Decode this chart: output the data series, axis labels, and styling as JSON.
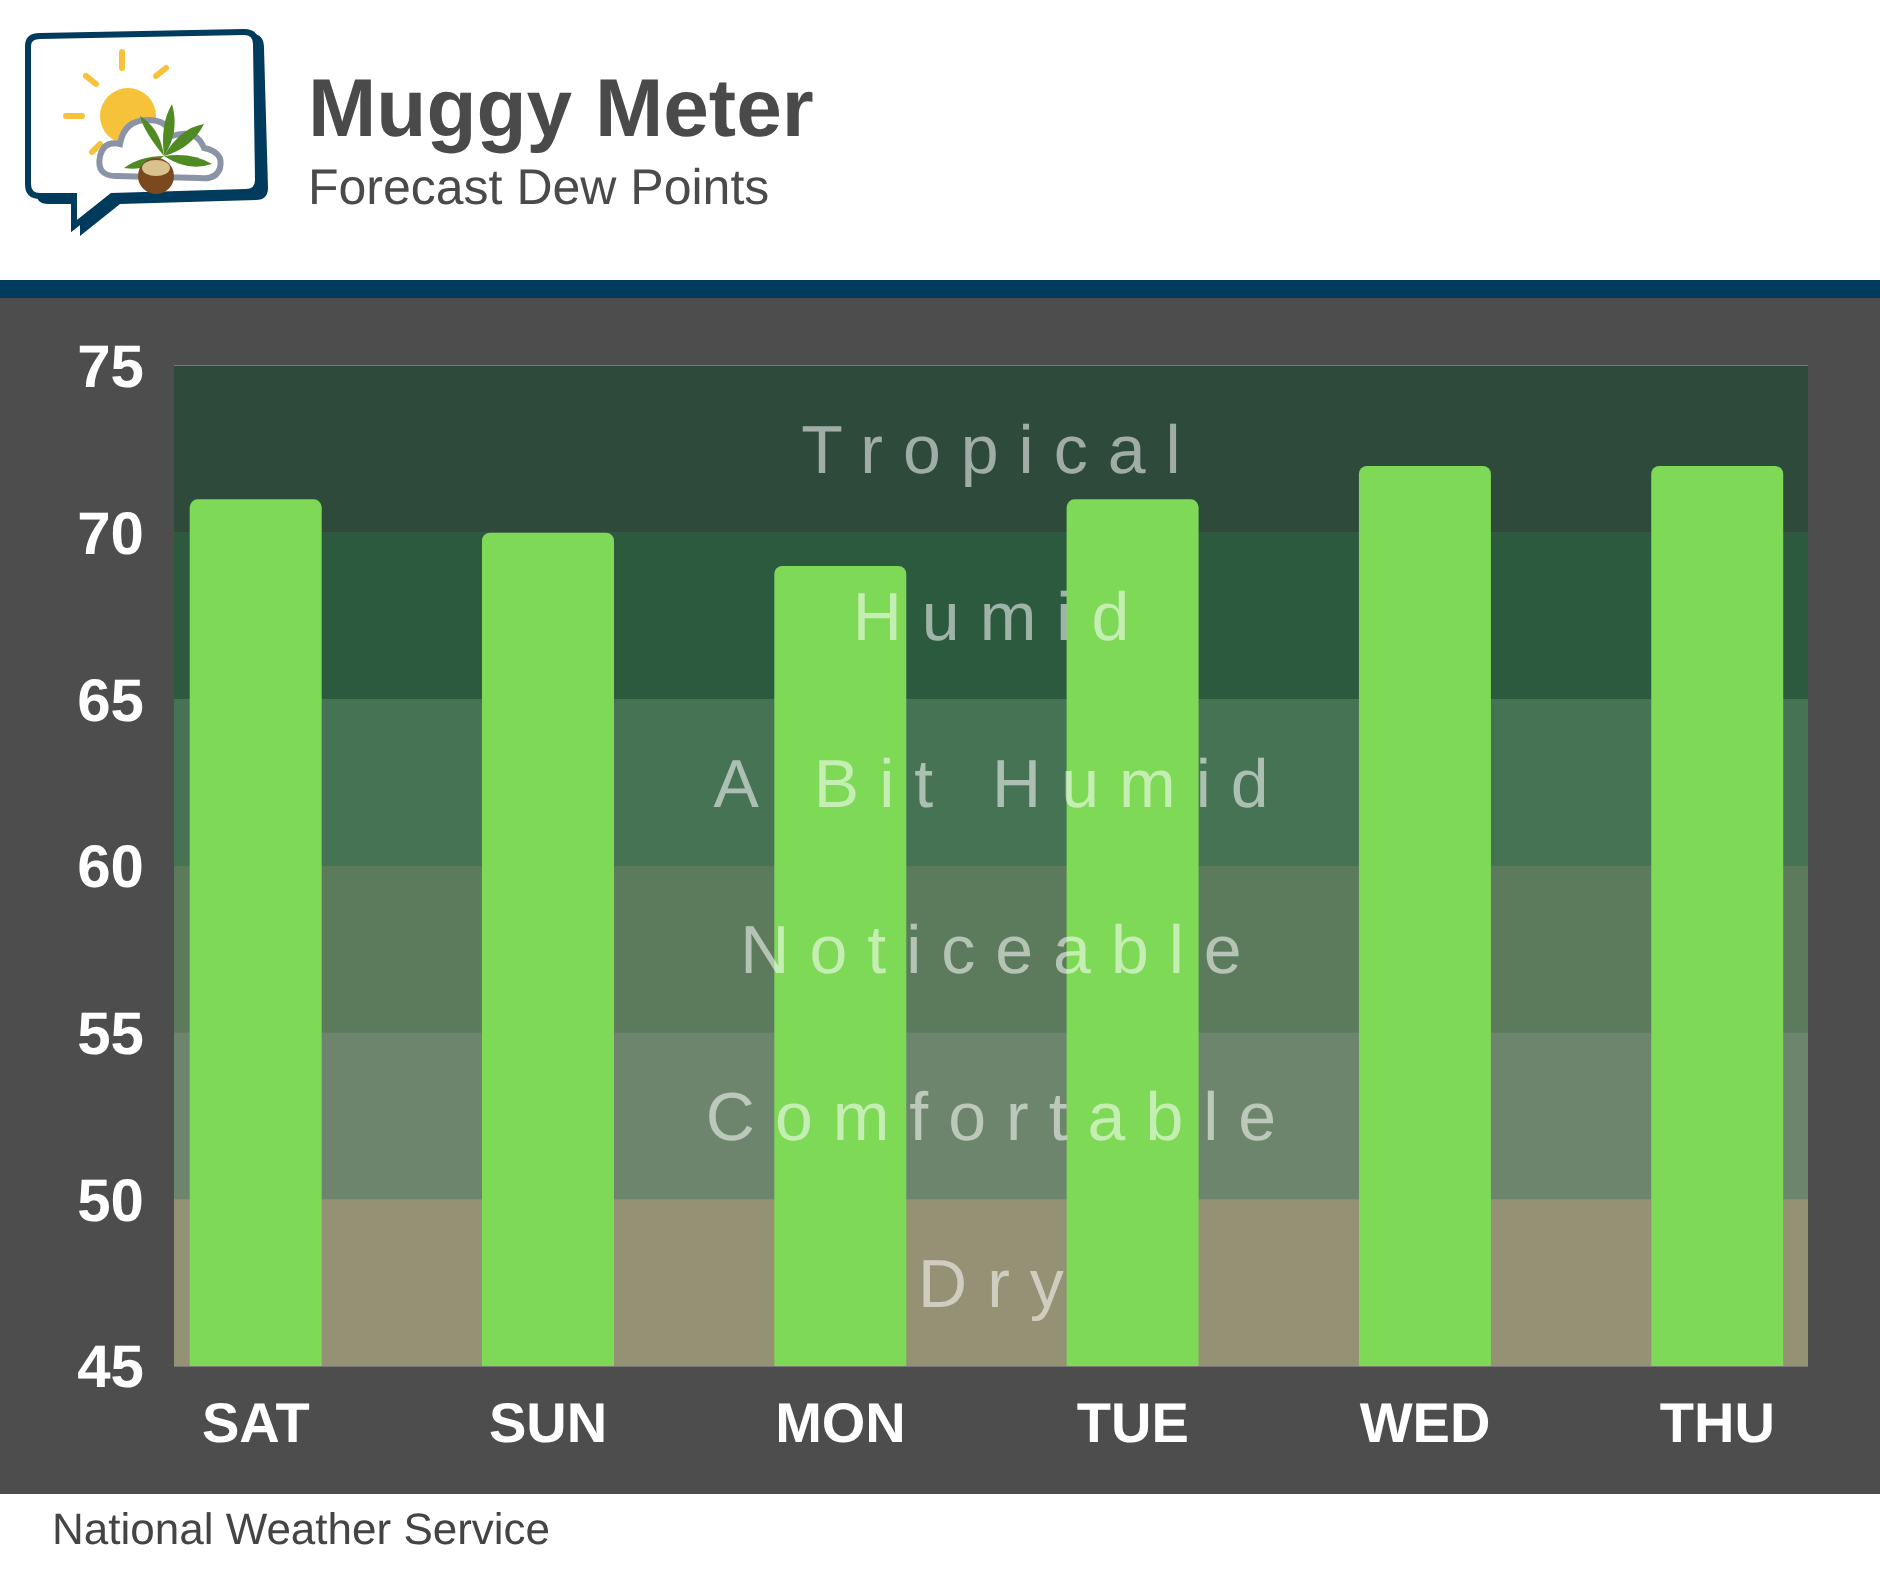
{
  "chart_data": {
    "type": "bar",
    "title": "Muggy Meter",
    "subtitle": "Forecast Dew Points",
    "categories": [
      "SAT",
      "SUN",
      "MON",
      "TUE",
      "WED",
      "THU"
    ],
    "values": [
      71,
      70,
      69,
      71,
      72,
      72
    ],
    "color": "#7ed957",
    "ylim": [
      45,
      75
    ],
    "yticks": [
      45,
      50,
      55,
      60,
      65,
      70,
      75
    ],
    "grid": "y",
    "bands": [
      {
        "axis": "y",
        "from": 70,
        "to": 75,
        "label": "Tropical",
        "color": "#2d4a3b"
      },
      {
        "axis": "y",
        "from": 65,
        "to": 70,
        "label": "Humid",
        "color": "#2c5a3f"
      },
      {
        "axis": "y",
        "from": 60,
        "to": 65,
        "label": "A Bit Humid",
        "color": "#467354"
      },
      {
        "axis": "y",
        "from": 55,
        "to": 60,
        "label": "Noticeable",
        "color": "#5b7b5c"
      },
      {
        "axis": "y",
        "from": 50,
        "to": 55,
        "label": "Comfortable",
        "color": "#6c856c"
      },
      {
        "axis": "y",
        "from": 45,
        "to": 50,
        "label": "Dry",
        "color": "#949174"
      }
    ],
    "annotations": [
      "National Weather Service"
    ]
  }
}
